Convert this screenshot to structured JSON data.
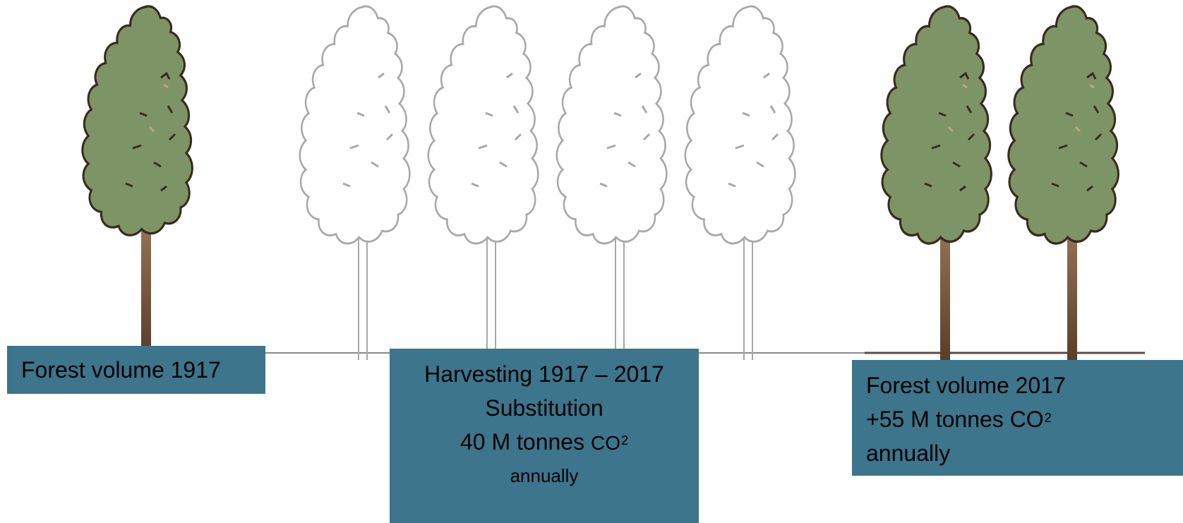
{
  "left_box": {
    "line1": "Forest volume 1917"
  },
  "middle_box": {
    "line1": "Harvesting 1917 – 2017",
    "line2": "Substitution",
    "line3_prefix": "40 M tonnes ",
    "line3_co2": "CO",
    "line3_sup": "2",
    "line4": "annually"
  },
  "right_box": {
    "line1": "Forest volume 2017",
    "line2_prefix": "+55 M tonnes CO",
    "line2_sup": "2",
    "line3": "annually"
  },
  "colors": {
    "box_fill": "#3c758c",
    "tree_foliage": "#7d9466",
    "tree_outline": "#3b2a1e",
    "trunk": "#6b4a33",
    "ghost_outline": "#a8a8a8",
    "ground": "#6b5a4a"
  },
  "icons": {
    "full_tree": "tree-icon",
    "harvested_tree": "tree-outline-icon"
  }
}
